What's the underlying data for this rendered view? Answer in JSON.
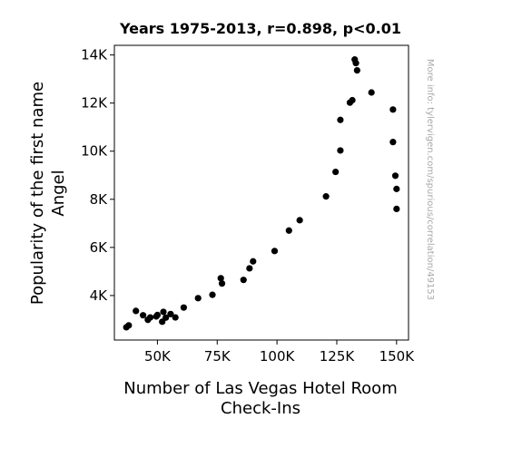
{
  "chart_data": {
    "type": "scatter",
    "title": "Years 1975-2013, r=0.898, p<0.01",
    "xlabel_lines": [
      "Number of Las Vegas Hotel Room",
      "Check-Ins"
    ],
    "ylabel_lines": [
      "Popularity of the first name",
      "Angel"
    ],
    "watermark": "More info: tylervigen.com/spurious/correlation/49153",
    "xlim": [
      32000,
      155000
    ],
    "ylim": [
      2150,
      14400
    ],
    "xticks": [
      {
        "value": 50000,
        "label": "50K"
      },
      {
        "value": 75000,
        "label": "75K"
      },
      {
        "value": 100000,
        "label": "100K"
      },
      {
        "value": 125000,
        "label": "125K"
      },
      {
        "value": 150000,
        "label": "150K"
      }
    ],
    "yticks": [
      {
        "value": 4000,
        "label": "4K"
      },
      {
        "value": 6000,
        "label": "6K"
      },
      {
        "value": 8000,
        "label": "8K"
      },
      {
        "value": 10000,
        "label": "10K"
      },
      {
        "value": 12000,
        "label": "12K"
      },
      {
        "value": 14000,
        "label": "14K"
      }
    ],
    "marker_color": "#000000",
    "grid": false,
    "points": [
      {
        "x": 37000,
        "y": 2680
      },
      {
        "x": 38000,
        "y": 2760
      },
      {
        "x": 41000,
        "y": 3360
      },
      {
        "x": 44000,
        "y": 3180
      },
      {
        "x": 46000,
        "y": 2990
      },
      {
        "x": 47000,
        "y": 3090
      },
      {
        "x": 49500,
        "y": 3130
      },
      {
        "x": 50000,
        "y": 3190
      },
      {
        "x": 52000,
        "y": 2910
      },
      {
        "x": 52500,
        "y": 3320
      },
      {
        "x": 53500,
        "y": 3080
      },
      {
        "x": 55500,
        "y": 3230
      },
      {
        "x": 57500,
        "y": 3090
      },
      {
        "x": 61000,
        "y": 3500
      },
      {
        "x": 67000,
        "y": 3890
      },
      {
        "x": 73000,
        "y": 4030
      },
      {
        "x": 76500,
        "y": 4720
      },
      {
        "x": 77000,
        "y": 4500
      },
      {
        "x": 86000,
        "y": 4650
      },
      {
        "x": 88500,
        "y": 5130
      },
      {
        "x": 90000,
        "y": 5420
      },
      {
        "x": 99000,
        "y": 5850
      },
      {
        "x": 105000,
        "y": 6700
      },
      {
        "x": 109500,
        "y": 7130
      },
      {
        "x": 120500,
        "y": 8120
      },
      {
        "x": 124500,
        "y": 9140
      },
      {
        "x": 126500,
        "y": 10030
      },
      {
        "x": 126500,
        "y": 11300
      },
      {
        "x": 130500,
        "y": 12020
      },
      {
        "x": 131500,
        "y": 12120
      },
      {
        "x": 132500,
        "y": 13810
      },
      {
        "x": 133000,
        "y": 13660
      },
      {
        "x": 133500,
        "y": 13360
      },
      {
        "x": 139500,
        "y": 12440
      },
      {
        "x": 148500,
        "y": 11730
      },
      {
        "x": 148500,
        "y": 10380
      },
      {
        "x": 149500,
        "y": 8980
      },
      {
        "x": 150000,
        "y": 8430
      },
      {
        "x": 150000,
        "y": 7600
      }
    ]
  }
}
